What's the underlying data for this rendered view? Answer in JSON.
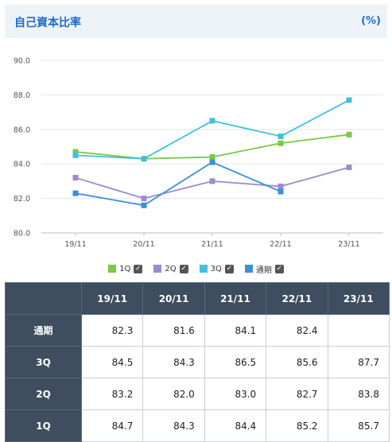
{
  "header": {
    "title": "自己資本比率",
    "unit": "(%)"
  },
  "colors": {
    "1Q": "#7ac943",
    "2Q": "#9b8bd1",
    "3Q": "#40c0e0",
    "通期": "#3b8fd9",
    "header_bg": "#3e4e60",
    "accent": "#1a6dcc"
  },
  "chart_data": {
    "type": "line",
    "categories": [
      "19/11",
      "20/11",
      "21/11",
      "22/11",
      "23/11"
    ],
    "ylim": [
      80.0,
      90.0
    ],
    "yticks": [
      "80.0",
      "82.0",
      "84.0",
      "86.0",
      "88.0",
      "90.0"
    ],
    "ytick_values": [
      80,
      82,
      84,
      86,
      88,
      90
    ],
    "grid": true,
    "legend_position": "bottom",
    "series": [
      {
        "name": "1Q",
        "values": [
          84.7,
          84.3,
          84.4,
          85.2,
          85.7
        ],
        "color": "#7ac943",
        "marker": "square"
      },
      {
        "name": "2Q",
        "values": [
          83.2,
          82.0,
          83.0,
          82.7,
          83.8
        ],
        "color": "#9b8bd1",
        "marker": "square"
      },
      {
        "name": "3Q",
        "values": [
          84.5,
          84.3,
          86.5,
          85.6,
          87.7
        ],
        "color": "#40c0e0",
        "marker": "square"
      },
      {
        "name": "通期",
        "values": [
          82.3,
          81.6,
          84.1,
          82.4,
          null
        ],
        "color": "#3b8fd9",
        "marker": "square"
      }
    ]
  },
  "legend": [
    {
      "label": "1Q",
      "color": "#7ac943",
      "checked": "✓"
    },
    {
      "label": "2Q",
      "color": "#9b8bd1",
      "checked": "✓"
    },
    {
      "label": "3Q",
      "color": "#40c0e0",
      "checked": "✓"
    },
    {
      "label": "通期",
      "color": "#3b8fd9",
      "checked": "✓"
    }
  ],
  "table": {
    "corner": "",
    "columns": [
      "19/11",
      "20/11",
      "21/11",
      "22/11",
      "23/11"
    ],
    "rows": [
      {
        "label": "通期",
        "cells": [
          "82.3",
          "81.6",
          "84.1",
          "82.4",
          ""
        ]
      },
      {
        "label": "3Q",
        "cells": [
          "84.5",
          "84.3",
          "86.5",
          "85.6",
          "87.7"
        ]
      },
      {
        "label": "2Q",
        "cells": [
          "83.2",
          "82.0",
          "83.0",
          "82.7",
          "83.8"
        ]
      },
      {
        "label": "1Q",
        "cells": [
          "84.7",
          "84.3",
          "84.4",
          "85.2",
          "85.7"
        ]
      }
    ]
  }
}
